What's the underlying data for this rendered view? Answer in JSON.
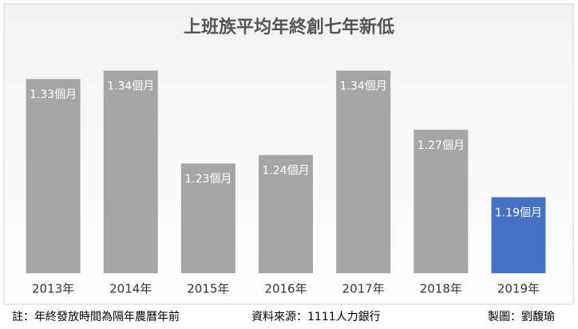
{
  "chart_data": {
    "type": "bar",
    "title": "上班族平均年終創七年新低",
    "categories": [
      "2013年",
      "2014年",
      "2015年",
      "2016年",
      "2017年",
      "2018年",
      "2019年"
    ],
    "values": [
      1.33,
      1.34,
      1.23,
      1.24,
      1.34,
      1.27,
      1.19
    ],
    "value_labels": [
      "1.33個月",
      "1.34個月",
      "1.23個月",
      "1.24個月",
      "1.34個月",
      "1.27個月",
      "1.19個月"
    ],
    "colors": [
      "#a6a6a6",
      "#a6a6a6",
      "#a6a6a6",
      "#a6a6a6",
      "#a6a6a6",
      "#a6a6a6",
      "#4472c4"
    ],
    "ylim": [
      1.1,
      1.35
    ]
  },
  "footer": {
    "note": "註：年終發放時間為隔年農曆年前",
    "source": "資料來源：1111人力銀行",
    "credit": "製圖：劉馥瑜"
  }
}
